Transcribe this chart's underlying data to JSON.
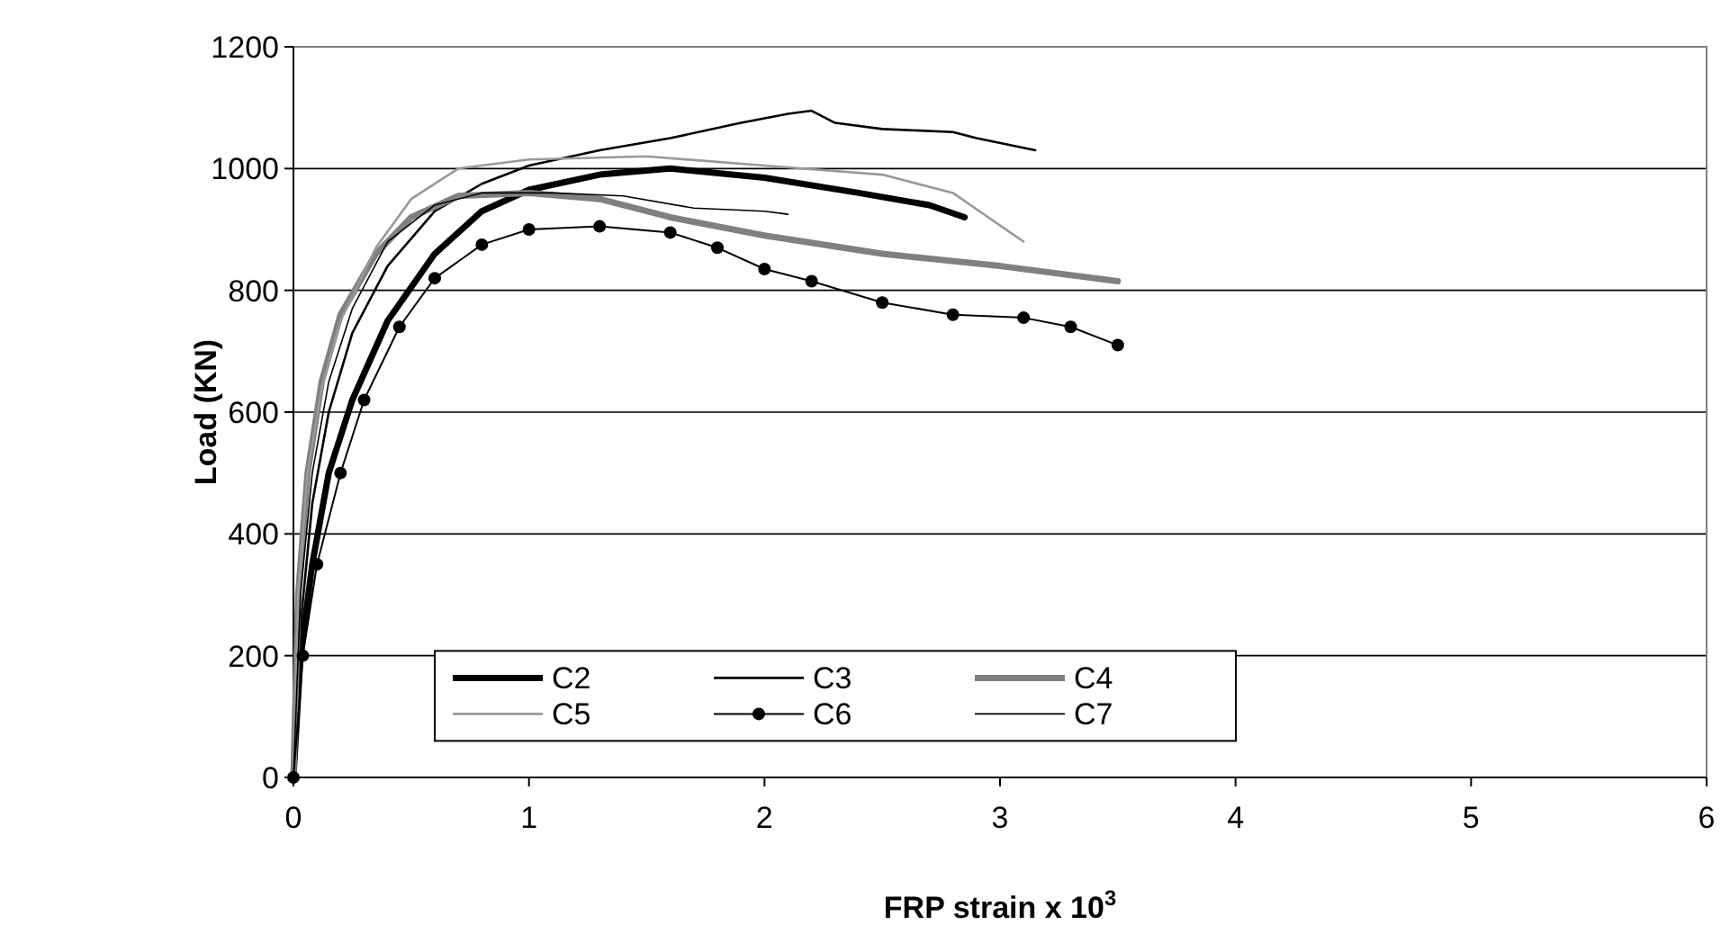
{
  "chart_data": {
    "type": "line",
    "xlabel": "FRP strain x 10$^{3}$",
    "ylabel": "Load (KN)",
    "xlim": [
      0,
      6
    ],
    "xticks": [
      0,
      1,
      2,
      3,
      4,
      5,
      6
    ],
    "ylim": [
      0,
      1200
    ],
    "yticks": [
      0,
      200,
      400,
      600,
      800,
      1000,
      1200
    ],
    "grid": "y",
    "legend": "bottom left",
    "marker": "none",
    "line_style": "solid",
    "series": [
      {
        "name": "C2",
        "color": "#000000",
        "x": [
          0,
          0.03,
          0.08,
          0.15,
          0.25,
          0.4,
          0.6,
          0.8,
          1.0,
          1.3,
          1.6,
          2.0,
          2.4,
          2.7,
          2.85
        ],
        "values": [
          0,
          200,
          350,
          500,
          620,
          750,
          860,
          930,
          965,
          990,
          1000,
          985,
          960,
          940,
          920
        ]
      },
      {
        "name": "C3",
        "color": "#000000",
        "x": [
          0,
          0.03,
          0.08,
          0.15,
          0.25,
          0.4,
          0.6,
          0.8,
          1.0,
          1.3,
          1.6,
          1.9,
          2.1,
          2.2,
          2.3,
          2.5,
          2.8,
          2.9,
          3.15
        ],
        "values": [
          0,
          250,
          450,
          600,
          730,
          840,
          930,
          975,
          1005,
          1030,
          1050,
          1075,
          1090,
          1095,
          1075,
          1065,
          1060,
          1050,
          1030
        ]
      },
      {
        "name": "C4",
        "color": "#808080",
        "x": [
          0,
          0.02,
          0.06,
          0.12,
          0.2,
          0.35,
          0.5,
          0.7,
          1.0,
          1.3,
          1.6,
          2.0,
          2.5,
          3.0,
          3.5
        ],
        "values": [
          0,
          300,
          500,
          650,
          760,
          860,
          920,
          955,
          960,
          950,
          920,
          890,
          860,
          840,
          815
        ]
      },
      {
        "name": "C5",
        "color": "#999999",
        "x": [
          0,
          0.02,
          0.06,
          0.12,
          0.2,
          0.35,
          0.5,
          0.7,
          1.0,
          1.5,
          2.0,
          2.5,
          2.8,
          2.95,
          3.1
        ],
        "values": [
          0,
          300,
          500,
          640,
          750,
          870,
          950,
          1000,
          1015,
          1020,
          1005,
          990,
          960,
          920,
          880
        ]
      },
      {
        "name": "C6",
        "color": "#000000",
        "marker": "circle",
        "x": [
          0,
          0.04,
          0.1,
          0.2,
          0.3,
          0.45,
          0.6,
          0.8,
          1.0,
          1.3,
          1.6,
          1.8,
          2.0,
          2.2,
          2.5,
          2.8,
          3.1,
          3.3,
          3.5
        ],
        "values": [
          0,
          200,
          350,
          500,
          620,
          740,
          820,
          875,
          900,
          905,
          895,
          870,
          835,
          815,
          780,
          760,
          755,
          740,
          710
        ]
      },
      {
        "name": "C7",
        "color": "#000000",
        "x": [
          0,
          0.03,
          0.08,
          0.15,
          0.25,
          0.4,
          0.6,
          0.8,
          1.1,
          1.4,
          1.7,
          2.0,
          2.1
        ],
        "values": [
          0,
          300,
          500,
          650,
          770,
          880,
          940,
          960,
          960,
          955,
          935,
          930,
          925
        ]
      }
    ]
  }
}
